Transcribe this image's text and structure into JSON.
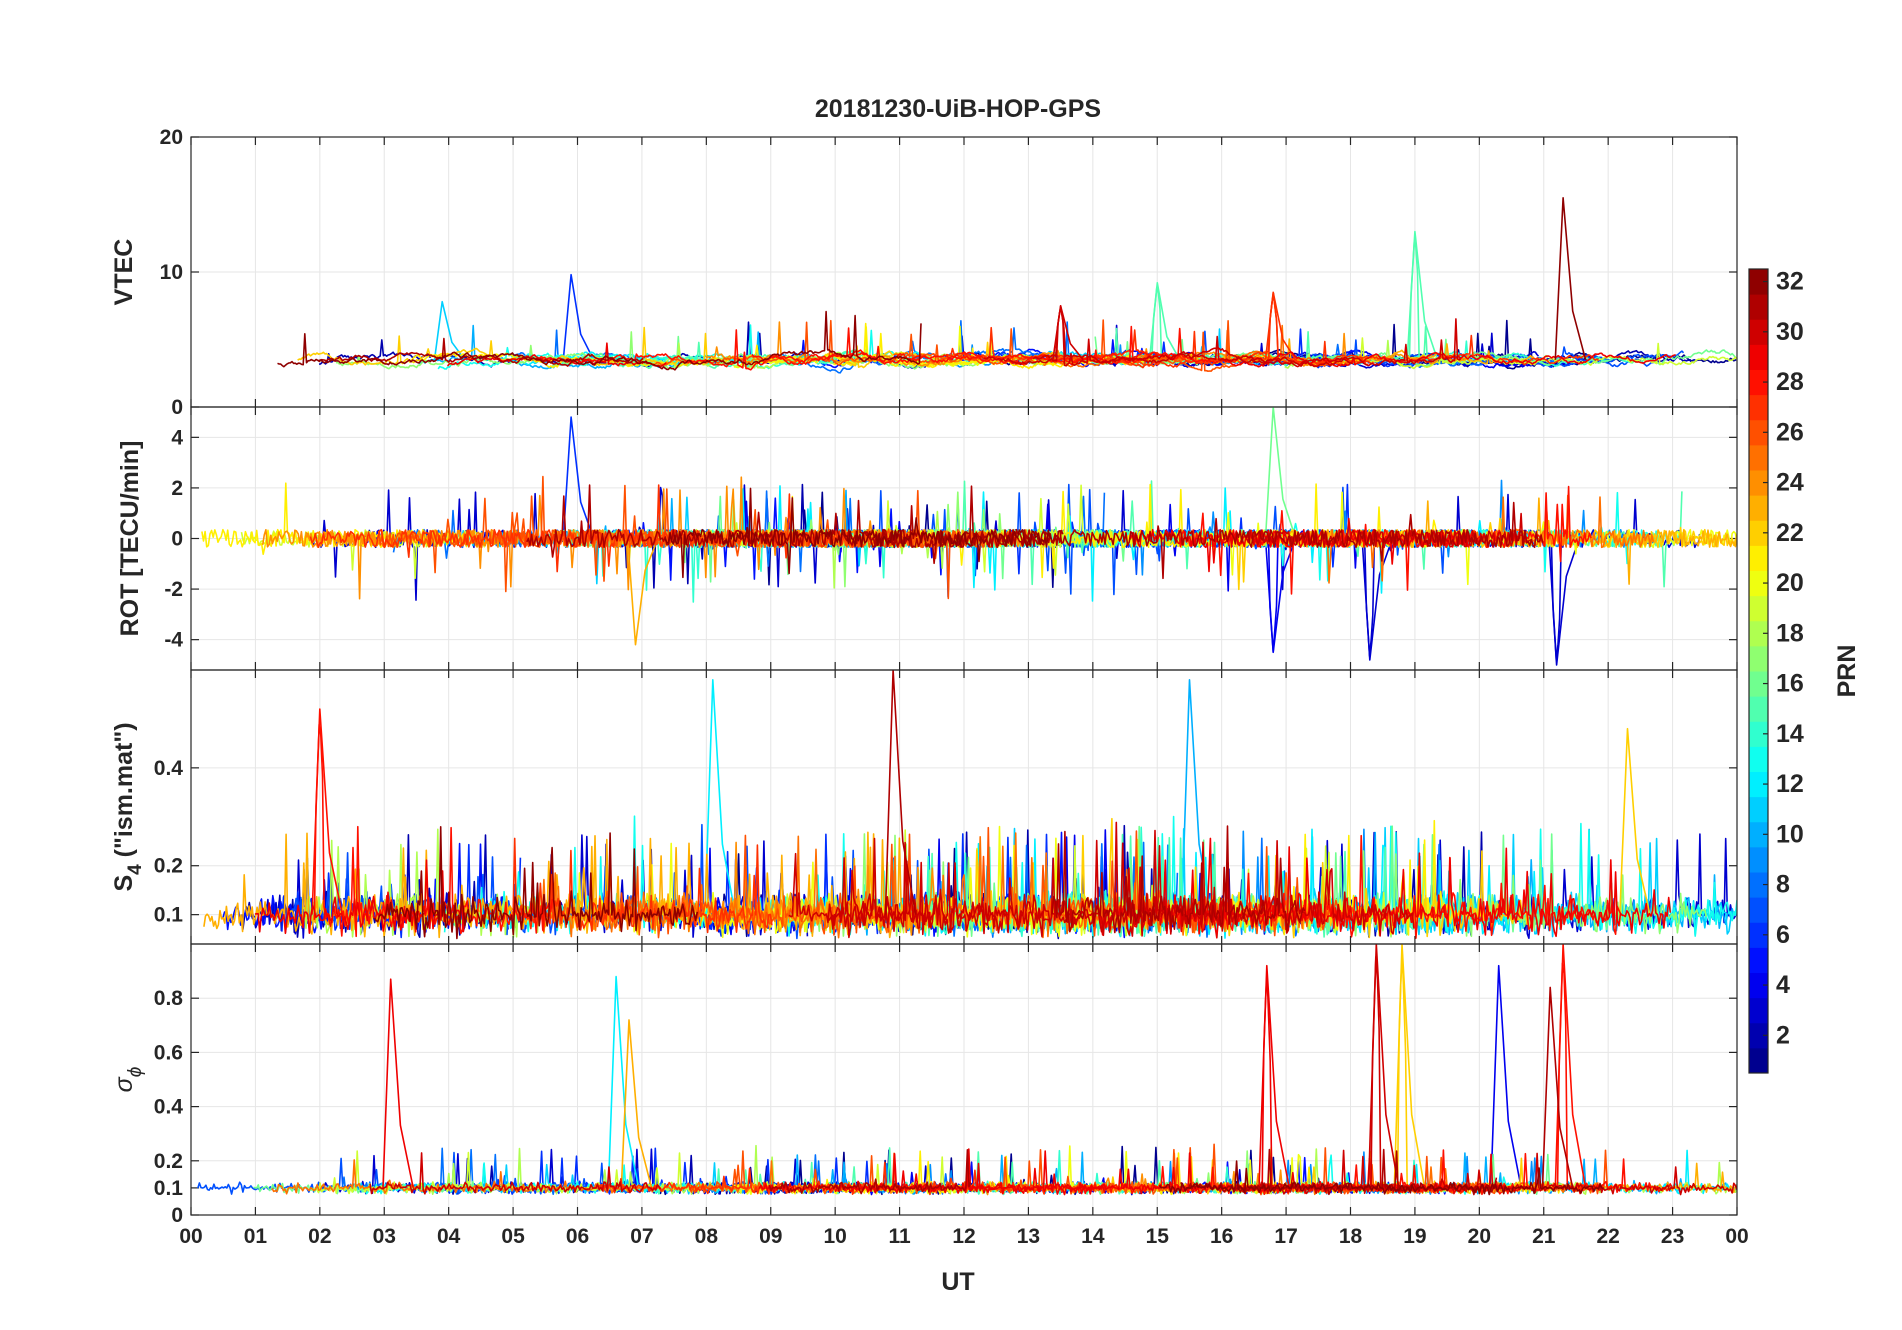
{
  "chart_data": {
    "type": "line",
    "title": "20181230-UiB-HOP-GPS",
    "xlabel": "UT",
    "x_ticks": [
      "00",
      "01",
      "02",
      "03",
      "04",
      "05",
      "06",
      "07",
      "08",
      "09",
      "10",
      "11",
      "12",
      "13",
      "14",
      "15",
      "16",
      "17",
      "18",
      "19",
      "20",
      "21",
      "22",
      "23",
      "00"
    ],
    "xlim": [
      0,
      24
    ],
    "panels": [
      {
        "name": "vtec",
        "ylabel": "VTEC",
        "ylim": [
          0,
          20
        ],
        "yticks": [
          0,
          10,
          20
        ],
        "ytick_labels": [
          "0",
          "10",
          "20"
        ],
        "baseline": 3.5,
        "noise": 1.2,
        "spike_prob": 0.01,
        "spike_amp": 3,
        "events": [
          {
            "prn": 32,
            "t": 21.3,
            "v": 15.5
          },
          {
            "prn": 15,
            "t": 19.0,
            "v": 13.0
          },
          {
            "prn": 6,
            "t": 5.9,
            "v": 9.8
          },
          {
            "prn": 27,
            "t": 16.8,
            "v": 8.5
          },
          {
            "prn": 15,
            "t": 15.0,
            "v": 9.2
          },
          {
            "prn": 11,
            "t": 3.9,
            "v": 7.8
          },
          {
            "prn": 30,
            "t": 13.5,
            "v": 7.5
          }
        ]
      },
      {
        "name": "rot",
        "ylabel": "ROT [TECU/min]",
        "ylim": [
          -5.2,
          5.2
        ],
        "yticks": [
          -4,
          -2,
          0,
          2,
          4
        ],
        "ytick_labels": [
          "-4",
          "-2",
          "0",
          "2",
          "4"
        ],
        "baseline": 0,
        "noise": 0.35,
        "spike_prob": 0.03,
        "spike_amp": 2.2,
        "events": [
          {
            "prn": 6,
            "t": 5.9,
            "v": 4.8
          },
          {
            "prn": 16,
            "t": 16.8,
            "v": 5.2
          },
          {
            "prn": 3,
            "t": 21.2,
            "v": -5.0
          },
          {
            "prn": 3,
            "t": 18.3,
            "v": -4.8
          },
          {
            "prn": 23,
            "t": 6.9,
            "v": -4.2
          },
          {
            "prn": 4,
            "t": 16.8,
            "v": -4.5
          }
        ]
      },
      {
        "name": "s4",
        "ylabel_main": "S",
        "ylabel_sub": "4",
        "ylabel_rest": " (\"ism.mat\")",
        "ylim": [
          0.04,
          0.6
        ],
        "yticks": [
          0.1,
          0.2,
          0.4
        ],
        "ytick_labels": [
          "0.1",
          "0.2",
          "0.4"
        ],
        "baseline": 0.1,
        "noise": 0.05,
        "spike_prob": 0.05,
        "spike_amp": 0.18,
        "events": [
          {
            "prn": 31,
            "t": 10.9,
            "v": 0.6
          },
          {
            "prn": 10,
            "t": 15.5,
            "v": 0.58
          },
          {
            "prn": 12,
            "t": 8.1,
            "v": 0.58
          },
          {
            "prn": 28,
            "t": 2.0,
            "v": 0.52
          },
          {
            "prn": 22,
            "t": 22.3,
            "v": 0.48
          }
        ]
      },
      {
        "name": "sigma",
        "ylabel_main": "σ",
        "ylabel_sub": "ϕ",
        "ylim": [
          0,
          1
        ],
        "yticks": [
          0,
          0.1,
          0.2,
          0.4,
          0.6,
          0.8
        ],
        "ytick_labels": [
          "0",
          "0.1",
          "0.2",
          "0.4",
          "0.6",
          "0.8"
        ],
        "baseline": 0.1,
        "noise": 0.025,
        "spike_prob": 0.02,
        "spike_amp": 0.15,
        "events": [
          {
            "prn": 29,
            "t": 3.1,
            "v": 0.87
          },
          {
            "prn": 12,
            "t": 6.6,
            "v": 0.88
          },
          {
            "prn": 23,
            "t": 6.8,
            "v": 0.72
          },
          {
            "prn": 29,
            "t": 16.7,
            "v": 0.92
          },
          {
            "prn": 30,
            "t": 18.4,
            "v": 1.0
          },
          {
            "prn": 22,
            "t": 18.8,
            "v": 1.0
          },
          {
            "prn": 4,
            "t": 20.3,
            "v": 0.92
          },
          {
            "prn": 28,
            "t": 21.3,
            "v": 1.0
          },
          {
            "prn": 31,
            "t": 21.1,
            "v": 0.84
          }
        ]
      }
    ],
    "colorbar": {
      "label": "PRN",
      "range": [
        1,
        32
      ],
      "ticks": [
        2,
        4,
        6,
        8,
        10,
        12,
        14,
        16,
        18,
        20,
        22,
        24,
        26,
        28,
        30,
        32
      ],
      "colormap": "jet",
      "levels": 32
    },
    "series": "GPS PRN 1–32 traces, colour-coded by PRN (jet colormap)"
  },
  "colors": {
    "axis": "#262626",
    "grid": "#e6e6e6",
    "background": "#ffffff"
  }
}
